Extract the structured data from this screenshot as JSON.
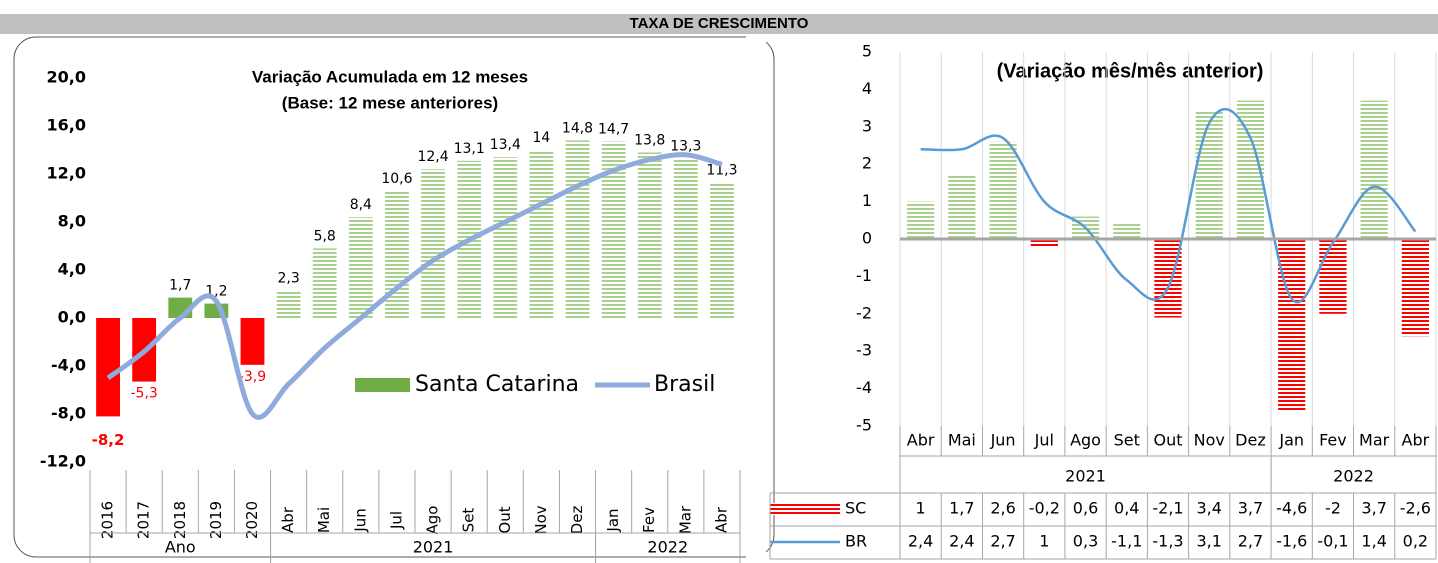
{
  "header": {
    "title": "TAXA DE CRESCIMENTO"
  },
  "chart_data": [
    {
      "type": "bar",
      "title": "Variação Acumulada em 12 meses",
      "subtitle": "(Base: 12 mese anteriores)",
      "categories": [
        "2016",
        "2017",
        "2018",
        "2019",
        "2020",
        "Abr",
        "Mai",
        "Jun",
        "Jul",
        "Ago",
        "Set",
        "Out",
        "Nov",
        "Dez",
        "Jan",
        "Fev",
        "Mar",
        "Abr"
      ],
      "groups": [
        {
          "name": "Ano",
          "count": 5
        },
        {
          "name": "2021",
          "count": 9
        },
        {
          "name": "2022",
          "count": 4
        }
      ],
      "series": [
        {
          "name": "Santa Catarina",
          "type": "bar",
          "color": "#70ad47",
          "negative_color": "#ff0000",
          "values": [
            -8.2,
            -5.3,
            1.7,
            1.2,
            -3.9,
            2.3,
            5.8,
            8.4,
            10.6,
            12.4,
            13.1,
            13.4,
            14,
            14.8,
            14.7,
            13.8,
            13.3,
            11.3
          ],
          "value_labels": [
            "-8,2",
            "-5,3",
            "1,7",
            "1,2",
            "-3,9",
            "2,3",
            "5,8",
            "8,4",
            "10,6",
            "12,4",
            "13,1",
            "13,4",
            "14",
            "14,8",
            "14,7",
            "13,8",
            "13,3",
            "11,3"
          ]
        },
        {
          "name": "Brasil",
          "type": "line",
          "color": "#8faadc",
          "values": [
            -5,
            -2.8,
            0,
            1.4,
            -8,
            -5.5,
            -2.5,
            0,
            2.5,
            4.8,
            6.5,
            8,
            9.5,
            11,
            12.3,
            13.2,
            13.6,
            12.8
          ]
        }
      ],
      "ylim": [
        -12,
        23
      ],
      "yticks": [
        {
          "value": -12,
          "label": "-12,0"
        },
        {
          "value": -8,
          "label": "-8,0"
        },
        {
          "value": -4,
          "label": "-4,0"
        },
        {
          "value": 0,
          "label": "0,0"
        },
        {
          "value": 4,
          "label": "4,0"
        },
        {
          "value": 8,
          "label": "8,0"
        },
        {
          "value": 12,
          "label": "12,0"
        },
        {
          "value": 16,
          "label": "16,0"
        },
        {
          "value": 20,
          "label": "20,0"
        }
      ],
      "legend": "bottom-right"
    },
    {
      "type": "bar",
      "title": "(Variação mês/mês anterior)",
      "categories": [
        "Abr",
        "Mai",
        "Jun",
        "Jul",
        "Ago",
        "Set",
        "Out",
        "Nov",
        "Dez",
        "Jan",
        "Fev",
        "Mar",
        "Abr"
      ],
      "groups": [
        {
          "name": "2021",
          "count": 9
        },
        {
          "name": "2022",
          "count": 4
        }
      ],
      "series": [
        {
          "name": "SC",
          "type": "bar",
          "color": "#a9d18e",
          "negative_color": "#ff0000",
          "values": [
            1,
            1.7,
            2.6,
            -0.2,
            0.6,
            0.4,
            -2.1,
            3.4,
            3.7,
            -4.6,
            -2,
            3.7,
            -2.6
          ],
          "value_labels": [
            "1",
            "1,7",
            "2,6",
            "-0,2",
            "0,6",
            "0,4",
            "-2,1",
            "3,4",
            "3,7",
            "-4,6",
            "-2",
            "3,7",
            "-2,6"
          ]
        },
        {
          "name": "BR",
          "type": "line",
          "color": "#5b9bd5",
          "values": [
            2.4,
            2.4,
            2.7,
            1,
            0.3,
            -1.1,
            -1.3,
            3.1,
            2.7,
            -1.6,
            -0.1,
            1.4,
            0.2
          ],
          "value_labels": [
            "2,4",
            "2,4",
            "2,7",
            "1",
            "0,3",
            "-1,1",
            "-1,3",
            "3,1",
            "2,7",
            "-1,6",
            "-0,1",
            "1,4",
            "0,2"
          ]
        }
      ],
      "ylim": [
        -5,
        5
      ],
      "yticks": [
        -5,
        -4,
        -3,
        -2,
        -1,
        0,
        1,
        2,
        3,
        4,
        5
      ],
      "legend": "data-table"
    }
  ]
}
